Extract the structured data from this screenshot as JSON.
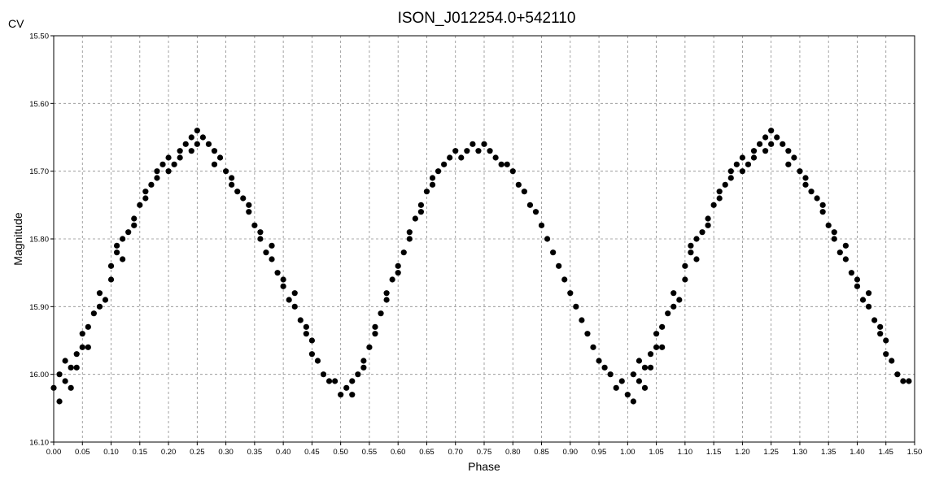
{
  "chart_data": {
    "type": "scatter",
    "title": "ISON_J012254.0+542110",
    "corner_label": "CV",
    "xlabel": "Phase",
    "ylabel": "Magnitude",
    "xlim": [
      0.0,
      1.5
    ],
    "ylim": [
      15.5,
      16.1
    ],
    "y_inverted": true,
    "grid": true,
    "x_ticks": [
      "0.00",
      "0.05",
      "0.10",
      "0.15",
      "0.20",
      "0.25",
      "0.30",
      "0.35",
      "0.40",
      "0.45",
      "0.50",
      "0.55",
      "0.60",
      "0.65",
      "0.70",
      "0.75",
      "0.80",
      "0.85",
      "0.90",
      "0.95",
      "1.00",
      "1.05",
      "1.10",
      "1.15",
      "1.20",
      "1.25",
      "1.30",
      "1.35",
      "1.40",
      "1.45",
      "1.50"
    ],
    "y_ticks": [
      "15.50",
      "15.60",
      "15.70",
      "15.80",
      "15.90",
      "16.00",
      "16.10"
    ],
    "marker_color": "#000000",
    "series": [
      {
        "points": [
          [
            0.0,
            16.02
          ],
          [
            0.01,
            16.04
          ],
          [
            0.01,
            16.0
          ],
          [
            0.02,
            16.01
          ],
          [
            0.02,
            15.98
          ],
          [
            0.03,
            16.02
          ],
          [
            0.03,
            15.99
          ],
          [
            0.04,
            15.97
          ],
          [
            0.04,
            15.99
          ],
          [
            0.05,
            15.96
          ],
          [
            0.05,
            15.94
          ],
          [
            0.06,
            15.96
          ],
          [
            0.06,
            15.93
          ],
          [
            0.07,
            15.91
          ],
          [
            0.08,
            15.9
          ],
          [
            0.08,
            15.88
          ],
          [
            0.09,
            15.89
          ],
          [
            0.1,
            15.86
          ],
          [
            0.1,
            15.84
          ],
          [
            0.11,
            15.82
          ],
          [
            0.11,
            15.81
          ],
          [
            0.12,
            15.83
          ],
          [
            0.12,
            15.8
          ],
          [
            0.13,
            15.79
          ],
          [
            0.14,
            15.77
          ],
          [
            0.14,
            15.78
          ],
          [
            0.15,
            15.75
          ],
          [
            0.16,
            15.74
          ],
          [
            0.16,
            15.73
          ],
          [
            0.17,
            15.72
          ],
          [
            0.18,
            15.71
          ],
          [
            0.18,
            15.7
          ],
          [
            0.19,
            15.69
          ],
          [
            0.2,
            15.7
          ],
          [
            0.2,
            15.68
          ],
          [
            0.21,
            15.69
          ],
          [
            0.22,
            15.67
          ],
          [
            0.22,
            15.68
          ],
          [
            0.23,
            15.66
          ],
          [
            0.24,
            15.67
          ],
          [
            0.24,
            15.65
          ],
          [
            0.25,
            15.64
          ],
          [
            0.25,
            15.66
          ],
          [
            0.26,
            15.65
          ],
          [
            0.27,
            15.66
          ],
          [
            0.28,
            15.67
          ],
          [
            0.28,
            15.69
          ],
          [
            0.29,
            15.68
          ],
          [
            0.3,
            15.7
          ],
          [
            0.31,
            15.72
          ],
          [
            0.31,
            15.71
          ],
          [
            0.32,
            15.73
          ],
          [
            0.33,
            15.74
          ],
          [
            0.34,
            15.76
          ],
          [
            0.34,
            15.75
          ],
          [
            0.35,
            15.78
          ],
          [
            0.36,
            15.8
          ],
          [
            0.36,
            15.79
          ],
          [
            0.37,
            15.82
          ],
          [
            0.38,
            15.83
          ],
          [
            0.38,
            15.81
          ],
          [
            0.39,
            15.85
          ],
          [
            0.4,
            15.87
          ],
          [
            0.4,
            15.86
          ],
          [
            0.41,
            15.89
          ],
          [
            0.42,
            15.9
          ],
          [
            0.42,
            15.88
          ],
          [
            0.43,
            15.92
          ],
          [
            0.44,
            15.94
          ],
          [
            0.44,
            15.93
          ],
          [
            0.45,
            15.95
          ],
          [
            0.45,
            15.97
          ],
          [
            0.46,
            15.98
          ],
          [
            0.47,
            16.0
          ],
          [
            0.48,
            16.01
          ],
          [
            0.49,
            16.01
          ],
          [
            0.5,
            16.03
          ],
          [
            0.51,
            16.02
          ],
          [
            0.52,
            16.03
          ],
          [
            0.52,
            16.01
          ],
          [
            0.53,
            16.0
          ],
          [
            0.54,
            15.99
          ],
          [
            0.54,
            15.98
          ],
          [
            0.55,
            15.96
          ],
          [
            0.56,
            15.94
          ],
          [
            0.56,
            15.93
          ],
          [
            0.57,
            15.91
          ],
          [
            0.58,
            15.89
          ],
          [
            0.58,
            15.88
          ],
          [
            0.59,
            15.86
          ],
          [
            0.6,
            15.84
          ],
          [
            0.6,
            15.85
          ],
          [
            0.61,
            15.82
          ],
          [
            0.62,
            15.8
          ],
          [
            0.62,
            15.79
          ],
          [
            0.63,
            15.77
          ],
          [
            0.64,
            15.76
          ],
          [
            0.64,
            15.75
          ],
          [
            0.65,
            15.73
          ],
          [
            0.66,
            15.72
          ],
          [
            0.66,
            15.71
          ],
          [
            0.67,
            15.7
          ],
          [
            0.68,
            15.69
          ],
          [
            0.69,
            15.68
          ],
          [
            0.7,
            15.67
          ],
          [
            0.71,
            15.68
          ],
          [
            0.72,
            15.67
          ],
          [
            0.73,
            15.66
          ],
          [
            0.74,
            15.67
          ],
          [
            0.75,
            15.66
          ],
          [
            0.76,
            15.67
          ],
          [
            0.77,
            15.68
          ],
          [
            0.78,
            15.69
          ],
          [
            0.79,
            15.69
          ],
          [
            0.8,
            15.7
          ],
          [
            0.81,
            15.72
          ],
          [
            0.82,
            15.73
          ],
          [
            0.83,
            15.75
          ],
          [
            0.84,
            15.76
          ],
          [
            0.85,
            15.78
          ],
          [
            0.86,
            15.8
          ],
          [
            0.87,
            15.82
          ],
          [
            0.88,
            15.84
          ],
          [
            0.89,
            15.86
          ],
          [
            0.9,
            15.88
          ],
          [
            0.91,
            15.9
          ],
          [
            0.92,
            15.92
          ],
          [
            0.93,
            15.94
          ],
          [
            0.94,
            15.96
          ],
          [
            0.95,
            15.98
          ],
          [
            0.96,
            15.99
          ],
          [
            0.97,
            16.0
          ],
          [
            0.98,
            16.02
          ],
          [
            0.99,
            16.01
          ],
          [
            1.0,
            16.03
          ],
          [
            1.01,
            16.04
          ],
          [
            1.01,
            16.0
          ],
          [
            1.02,
            16.01
          ],
          [
            1.02,
            15.98
          ],
          [
            1.03,
            16.02
          ],
          [
            1.03,
            15.99
          ],
          [
            1.04,
            15.97
          ],
          [
            1.04,
            15.99
          ],
          [
            1.05,
            15.96
          ],
          [
            1.05,
            15.94
          ],
          [
            1.06,
            15.96
          ],
          [
            1.06,
            15.93
          ],
          [
            1.07,
            15.91
          ],
          [
            1.08,
            15.9
          ],
          [
            1.08,
            15.88
          ],
          [
            1.09,
            15.89
          ],
          [
            1.1,
            15.86
          ],
          [
            1.1,
            15.84
          ],
          [
            1.11,
            15.82
          ],
          [
            1.11,
            15.81
          ],
          [
            1.12,
            15.83
          ],
          [
            1.12,
            15.8
          ],
          [
            1.13,
            15.79
          ],
          [
            1.14,
            15.77
          ],
          [
            1.14,
            15.78
          ],
          [
            1.15,
            15.75
          ],
          [
            1.16,
            15.74
          ],
          [
            1.16,
            15.73
          ],
          [
            1.17,
            15.72
          ],
          [
            1.18,
            15.71
          ],
          [
            1.18,
            15.7
          ],
          [
            1.19,
            15.69
          ],
          [
            1.2,
            15.7
          ],
          [
            1.2,
            15.68
          ],
          [
            1.21,
            15.69
          ],
          [
            1.22,
            15.67
          ],
          [
            1.22,
            15.68
          ],
          [
            1.23,
            15.66
          ],
          [
            1.24,
            15.67
          ],
          [
            1.24,
            15.65
          ],
          [
            1.25,
            15.64
          ],
          [
            1.25,
            15.66
          ],
          [
            1.26,
            15.65
          ],
          [
            1.27,
            15.66
          ],
          [
            1.28,
            15.67
          ],
          [
            1.28,
            15.69
          ],
          [
            1.29,
            15.68
          ],
          [
            1.3,
            15.7
          ],
          [
            1.31,
            15.72
          ],
          [
            1.31,
            15.71
          ],
          [
            1.32,
            15.73
          ],
          [
            1.33,
            15.74
          ],
          [
            1.34,
            15.76
          ],
          [
            1.34,
            15.75
          ],
          [
            1.35,
            15.78
          ],
          [
            1.36,
            15.8
          ],
          [
            1.36,
            15.79
          ],
          [
            1.37,
            15.82
          ],
          [
            1.38,
            15.83
          ],
          [
            1.38,
            15.81
          ],
          [
            1.39,
            15.85
          ],
          [
            1.4,
            15.87
          ],
          [
            1.4,
            15.86
          ],
          [
            1.41,
            15.89
          ],
          [
            1.42,
            15.9
          ],
          [
            1.42,
            15.88
          ],
          [
            1.43,
            15.92
          ],
          [
            1.44,
            15.94
          ],
          [
            1.44,
            15.93
          ],
          [
            1.45,
            15.95
          ],
          [
            1.45,
            15.97
          ],
          [
            1.46,
            15.98
          ],
          [
            1.47,
            16.0
          ],
          [
            1.48,
            16.01
          ],
          [
            1.49,
            16.01
          ]
        ]
      }
    ]
  }
}
